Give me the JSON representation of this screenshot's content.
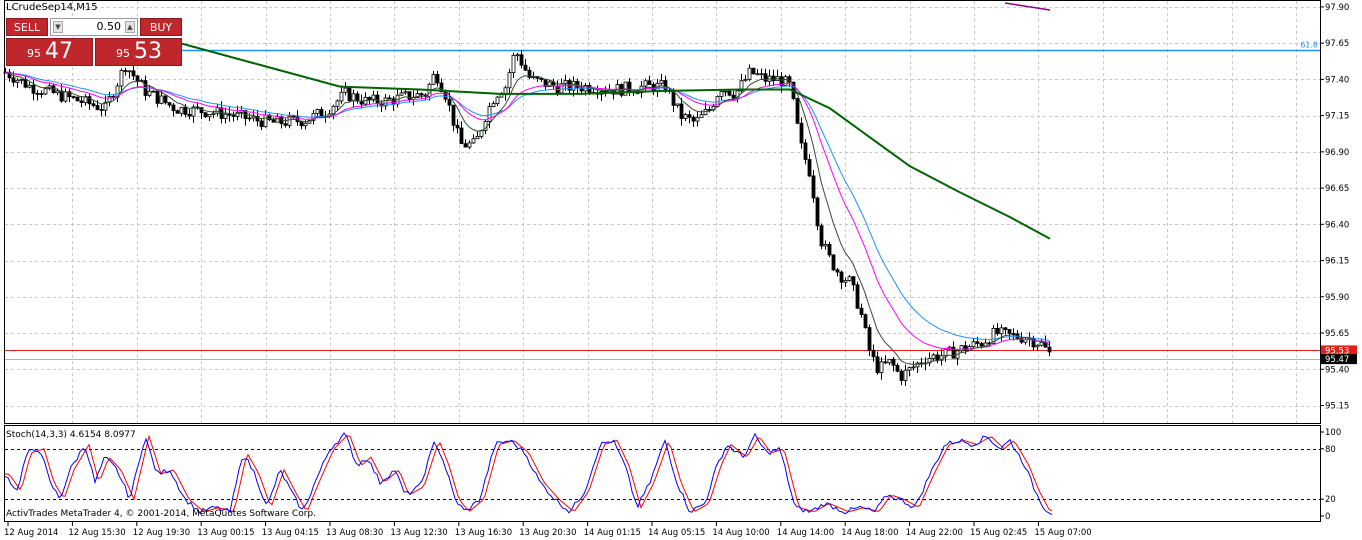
{
  "chart": {
    "title": "LCrudeSep14,M15",
    "fibo_label": "61.8",
    "price_labels": [
      "97.90",
      "97.65",
      "97.40",
      "97.15",
      "96.90",
      "96.65",
      "96.40",
      "96.15",
      "95.90",
      "95.65",
      "95.40",
      "95.15"
    ],
    "price_levels": [
      97.9,
      97.65,
      97.4,
      97.15,
      96.9,
      96.65,
      96.4,
      96.15,
      95.9,
      95.65,
      95.4,
      95.15
    ],
    "ask_label": "95.53",
    "bid_label": "95.47",
    "ask_color": "#e0201f",
    "bid_color": "#000000",
    "fibo_color": "#1e90ff",
    "candle_color": "#000000",
    "ma_colors": {
      "long": "#006400",
      "blue": "#1e90ff",
      "magenta": "#ff00ff",
      "dark": "#2f4f2f"
    }
  },
  "time_labels": [
    "12 Aug 2014",
    "12 Aug 15:30",
    "12 Aug 19:30",
    "13 Aug 00:15",
    "13 Aug 04:15",
    "13 Aug 08:30",
    "13 Aug 12:30",
    "13 Aug 16:30",
    "13 Aug 20:30",
    "14 Aug 01:15",
    "14 Aug 05:15",
    "14 Aug 10:00",
    "14 Aug 14:00",
    "14 Aug 18:00",
    "14 Aug 22:00",
    "15 Aug 02:45",
    "15 Aug 07:00"
  ],
  "one_click": {
    "sell_label": "SELL",
    "buy_label": "BUY",
    "lot_value": "0.50",
    "sell_small": "95",
    "sell_big": "47",
    "buy_small": "95",
    "buy_big": "53"
  },
  "indicator": {
    "title": "Stoch(14,3,3) 4.6154 8.0977",
    "labels": [
      "100",
      "80",
      "20",
      "0"
    ],
    "main_color": "#0000ff",
    "signal_color": "#ff0000"
  },
  "copyright": "ActivTrades MetaTrader 4, © 2001-2014, MetaQuotes Software Corp.",
  "chart_data": {
    "type": "line",
    "price_axis": {
      "min": 95.05,
      "max": 97.92
    },
    "fibo_level": 97.6,
    "ask": 95.53,
    "bid": 95.47,
    "key_points": [
      {
        "x": 0,
        "close": 97.45
      },
      {
        "x": 25,
        "close": 97.35
      },
      {
        "x": 50,
        "close": 97.3
      },
      {
        "x": 75,
        "close": 97.25
      },
      {
        "x": 100,
        "close": 97.2
      },
      {
        "x": 120,
        "close": 97.5
      },
      {
        "x": 140,
        "close": 97.32
      },
      {
        "x": 170,
        "close": 97.2
      },
      {
        "x": 200,
        "close": 97.18
      },
      {
        "x": 230,
        "close": 97.15
      },
      {
        "x": 250,
        "close": 97.12
      },
      {
        "x": 270,
        "close": 97.1
      },
      {
        "x": 300,
        "close": 97.12
      },
      {
        "x": 320,
        "close": 97.18
      },
      {
        "x": 340,
        "close": 97.3
      },
      {
        "x": 360,
        "close": 97.25
      },
      {
        "x": 380,
        "close": 97.25
      },
      {
        "x": 400,
        "close": 97.28
      },
      {
        "x": 420,
        "close": 97.3
      },
      {
        "x": 430,
        "close": 97.45
      },
      {
        "x": 440,
        "close": 97.3
      },
      {
        "x": 455,
        "close": 96.95
      },
      {
        "x": 470,
        "close": 96.95
      },
      {
        "x": 480,
        "close": 97.15
      },
      {
        "x": 490,
        "close": 97.3
      },
      {
        "x": 500,
        "close": 97.35
      },
      {
        "x": 510,
        "close": 97.6
      },
      {
        "x": 525,
        "close": 97.4
      },
      {
        "x": 550,
        "close": 97.35
      },
      {
        "x": 580,
        "close": 97.35
      },
      {
        "x": 610,
        "close": 97.33
      },
      {
        "x": 640,
        "close": 97.35
      },
      {
        "x": 660,
        "close": 97.35
      },
      {
        "x": 675,
        "close": 97.15
      },
      {
        "x": 690,
        "close": 97.1
      },
      {
        "x": 705,
        "close": 97.2
      },
      {
        "x": 715,
        "close": 97.35
      },
      {
        "x": 730,
        "close": 97.3
      },
      {
        "x": 745,
        "close": 97.45
      },
      {
        "x": 760,
        "close": 97.4
      },
      {
        "x": 775,
        "close": 97.4
      },
      {
        "x": 785,
        "close": 97.35
      },
      {
        "x": 795,
        "close": 96.95
      },
      {
        "x": 805,
        "close": 96.75
      },
      {
        "x": 815,
        "close": 96.3
      },
      {
        "x": 825,
        "close": 96.15
      },
      {
        "x": 835,
        "close": 96.05
      },
      {
        "x": 845,
        "close": 96.0
      },
      {
        "x": 855,
        "close": 95.8
      },
      {
        "x": 865,
        "close": 95.5
      },
      {
        "x": 873,
        "close": 95.4
      },
      {
        "x": 885,
        "close": 95.45
      },
      {
        "x": 895,
        "close": 95.35
      },
      {
        "x": 905,
        "close": 95.4
      },
      {
        "x": 920,
        "close": 95.48
      },
      {
        "x": 940,
        "close": 95.5
      },
      {
        "x": 960,
        "close": 95.55
      },
      {
        "x": 975,
        "close": 95.58
      },
      {
        "x": 990,
        "close": 95.65
      },
      {
        "x": 1005,
        "close": 95.63
      },
      {
        "x": 1020,
        "close": 95.62
      },
      {
        "x": 1035,
        "close": 95.58
      },
      {
        "x": 1045,
        "close": 95.5
      }
    ],
    "stochastic": {
      "levels": [
        80,
        20
      ],
      "main_key_points": [
        {
          "x": 0,
          "v": 50
        },
        {
          "x": 12,
          "v": 30
        },
        {
          "x": 22,
          "v": 75
        },
        {
          "x": 35,
          "v": 80
        },
        {
          "x": 45,
          "v": 40
        },
        {
          "x": 55,
          "v": 20
        },
        {
          "x": 65,
          "v": 55
        },
        {
          "x": 80,
          "v": 85
        },
        {
          "x": 90,
          "v": 40
        },
        {
          "x": 100,
          "v": 70
        },
        {
          "x": 112,
          "v": 55
        },
        {
          "x": 125,
          "v": 20
        },
        {
          "x": 140,
          "v": 95
        },
        {
          "x": 152,
          "v": 50
        },
        {
          "x": 165,
          "v": 55
        },
        {
          "x": 180,
          "v": 20
        },
        {
          "x": 195,
          "v": 5
        },
        {
          "x": 210,
          "v": 10
        },
        {
          "x": 225,
          "v": 5
        },
        {
          "x": 238,
          "v": 75
        },
        {
          "x": 250,
          "v": 50
        },
        {
          "x": 262,
          "v": 10
        },
        {
          "x": 275,
          "v": 55
        },
        {
          "x": 288,
          "v": 25
        },
        {
          "x": 298,
          "v": 5
        },
        {
          "x": 310,
          "v": 40
        },
        {
          "x": 325,
          "v": 80
        },
        {
          "x": 340,
          "v": 98
        },
        {
          "x": 352,
          "v": 60
        },
        {
          "x": 362,
          "v": 70
        },
        {
          "x": 375,
          "v": 40
        },
        {
          "x": 390,
          "v": 55
        },
        {
          "x": 400,
          "v": 25
        },
        {
          "x": 415,
          "v": 35
        },
        {
          "x": 430,
          "v": 90
        },
        {
          "x": 440,
          "v": 60
        },
        {
          "x": 450,
          "v": 20
        },
        {
          "x": 460,
          "v": 5
        },
        {
          "x": 475,
          "v": 20
        },
        {
          "x": 490,
          "v": 85
        },
        {
          "x": 505,
          "v": 90
        },
        {
          "x": 520,
          "v": 75
        },
        {
          "x": 535,
          "v": 40
        },
        {
          "x": 550,
          "v": 20
        },
        {
          "x": 565,
          "v": 5
        },
        {
          "x": 580,
          "v": 30
        },
        {
          "x": 595,
          "v": 85
        },
        {
          "x": 608,
          "v": 90
        },
        {
          "x": 620,
          "v": 60
        },
        {
          "x": 632,
          "v": 10
        },
        {
          "x": 645,
          "v": 40
        },
        {
          "x": 660,
          "v": 90
        },
        {
          "x": 672,
          "v": 40
        },
        {
          "x": 685,
          "v": 5
        },
        {
          "x": 700,
          "v": 15
        },
        {
          "x": 712,
          "v": 60
        },
        {
          "x": 722,
          "v": 85
        },
        {
          "x": 738,
          "v": 70
        },
        {
          "x": 750,
          "v": 95
        },
        {
          "x": 762,
          "v": 75
        },
        {
          "x": 775,
          "v": 80
        },
        {
          "x": 790,
          "v": 10
        },
        {
          "x": 805,
          "v": 5
        },
        {
          "x": 820,
          "v": 15
        },
        {
          "x": 840,
          "v": 5
        },
        {
          "x": 855,
          "v": 10
        },
        {
          "x": 870,
          "v": 5
        },
        {
          "x": 882,
          "v": 25
        },
        {
          "x": 895,
          "v": 20
        },
        {
          "x": 910,
          "v": 10
        },
        {
          "x": 925,
          "v": 50
        },
        {
          "x": 940,
          "v": 85
        },
        {
          "x": 955,
          "v": 90
        },
        {
          "x": 968,
          "v": 85
        },
        {
          "x": 982,
          "v": 95
        },
        {
          "x": 995,
          "v": 80
        },
        {
          "x": 1005,
          "v": 90
        },
        {
          "x": 1020,
          "v": 60
        },
        {
          "x": 1030,
          "v": 30
        },
        {
          "x": 1040,
          "v": 8
        },
        {
          "x": 1048,
          "v": 3
        }
      ],
      "signal_lag": 4
    }
  }
}
